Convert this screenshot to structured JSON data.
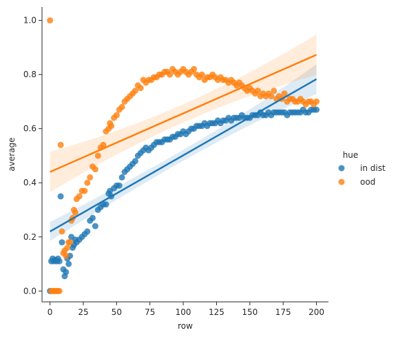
{
  "chart_data": {
    "type": "scatter",
    "title": "",
    "xlabel": "row",
    "ylabel": "average",
    "xlim": [
      -6,
      209
    ],
    "ylim": [
      -0.04,
      1.05
    ],
    "x_ticks": [
      0,
      25,
      50,
      75,
      100,
      125,
      150,
      175,
      200
    ],
    "y_ticks": [
      0.0,
      0.2,
      0.4,
      0.6,
      0.8,
      1.0
    ],
    "x_tick_labels": [
      "0",
      "25",
      "50",
      "75",
      "100",
      "125",
      "150",
      "175",
      "200"
    ],
    "y_tick_labels": [
      "0.0",
      "0.2",
      "0.4",
      "0.6",
      "0.8",
      "1.0"
    ],
    "grid": false,
    "legend": {
      "title": "hue",
      "placement": "right",
      "entries": [
        "in dist",
        "ood"
      ]
    },
    "series": [
      {
        "name": "in dist",
        "color": "#1f77b4",
        "regression": {
          "x0": 0,
          "y0": 0.22,
          "x1": 200,
          "y1": 0.783,
          "ci_start": 0.035,
          "ci_end": 0.055
        },
        "points": [
          [
            0,
            0.0
          ],
          [
            1,
            0.11
          ],
          [
            2,
            0.12
          ],
          [
            3,
            0.11
          ],
          [
            4,
            0.115
          ],
          [
            5,
            0.11
          ],
          [
            6,
            0.12
          ],
          [
            7,
            0.11
          ],
          [
            8,
            0.35
          ],
          [
            9,
            0.18
          ],
          [
            10,
            0.08
          ],
          [
            11,
            0.055
          ],
          [
            12,
            0.07
          ],
          [
            13,
            0.12
          ],
          [
            14,
            0.1
          ],
          [
            15,
            0.13
          ],
          [
            16,
            0.2
          ],
          [
            17,
            0.16
          ],
          [
            18,
            0.17
          ],
          [
            19,
            0.19
          ],
          [
            20,
            0.18
          ],
          [
            22,
            0.19
          ],
          [
            24,
            0.2
          ],
          [
            26,
            0.21
          ],
          [
            28,
            0.22
          ],
          [
            30,
            0.26
          ],
          [
            32,
            0.27
          ],
          [
            34,
            0.24
          ],
          [
            36,
            0.3
          ],
          [
            38,
            0.31
          ],
          [
            40,
            0.32
          ],
          [
            42,
            0.32
          ],
          [
            44,
            0.36
          ],
          [
            45,
            0.37
          ],
          [
            46,
            0.35
          ],
          [
            48,
            0.38
          ],
          [
            50,
            0.39
          ],
          [
            52,
            0.39
          ],
          [
            54,
            0.42
          ],
          [
            56,
            0.44
          ],
          [
            58,
            0.45
          ],
          [
            60,
            0.46
          ],
          [
            62,
            0.47
          ],
          [
            64,
            0.48
          ],
          [
            66,
            0.5
          ],
          [
            68,
            0.51
          ],
          [
            70,
            0.52
          ],
          [
            72,
            0.53
          ],
          [
            74,
            0.52
          ],
          [
            76,
            0.53
          ],
          [
            78,
            0.54
          ],
          [
            80,
            0.55
          ],
          [
            82,
            0.55
          ],
          [
            84,
            0.55
          ],
          [
            86,
            0.56
          ],
          [
            88,
            0.56
          ],
          [
            90,
            0.56
          ],
          [
            92,
            0.57
          ],
          [
            94,
            0.57
          ],
          [
            96,
            0.58
          ],
          [
            98,
            0.58
          ],
          [
            100,
            0.59
          ],
          [
            102,
            0.58
          ],
          [
            104,
            0.59
          ],
          [
            106,
            0.6
          ],
          [
            108,
            0.6
          ],
          [
            110,
            0.61
          ],
          [
            112,
            0.61
          ],
          [
            114,
            0.61
          ],
          [
            116,
            0.62
          ],
          [
            118,
            0.61
          ],
          [
            120,
            0.62
          ],
          [
            122,
            0.62
          ],
          [
            124,
            0.62
          ],
          [
            126,
            0.63
          ],
          [
            128,
            0.62
          ],
          [
            130,
            0.63
          ],
          [
            132,
            0.63
          ],
          [
            134,
            0.64
          ],
          [
            136,
            0.63
          ],
          [
            138,
            0.64
          ],
          [
            140,
            0.64
          ],
          [
            142,
            0.64
          ],
          [
            144,
            0.65
          ],
          [
            146,
            0.64
          ],
          [
            148,
            0.64
          ],
          [
            150,
            0.64
          ],
          [
            152,
            0.65
          ],
          [
            154,
            0.65
          ],
          [
            156,
            0.65
          ],
          [
            158,
            0.66
          ],
          [
            160,
            0.65
          ],
          [
            162,
            0.65
          ],
          [
            164,
            0.66
          ],
          [
            166,
            0.65
          ],
          [
            168,
            0.66
          ],
          [
            170,
            0.66
          ],
          [
            172,
            0.66
          ],
          [
            174,
            0.66
          ],
          [
            176,
            0.66
          ],
          [
            178,
            0.65
          ],
          [
            180,
            0.66
          ],
          [
            182,
            0.66
          ],
          [
            184,
            0.66
          ],
          [
            186,
            0.66
          ],
          [
            188,
            0.66
          ],
          [
            190,
            0.67
          ],
          [
            192,
            0.66
          ],
          [
            194,
            0.66
          ],
          [
            196,
            0.67
          ],
          [
            198,
            0.67
          ],
          [
            200,
            0.67
          ]
        ]
      },
      {
        "name": "ood",
        "color": "#ff7f0e",
        "regression": {
          "x0": 0,
          "y0": 0.44,
          "x1": 200,
          "y1": 0.873,
          "ci_start": 0.075,
          "ci_end": 0.075
        },
        "points": [
          [
            0,
            1.0
          ],
          [
            1,
            0.0
          ],
          [
            2,
            0.0
          ],
          [
            3,
            0.0
          ],
          [
            4,
            0.0
          ],
          [
            5,
            0.0
          ],
          [
            6,
            0.0
          ],
          [
            7,
            0.0
          ],
          [
            8,
            0.54
          ],
          [
            9,
            0.22
          ],
          [
            10,
            0.14
          ],
          [
            11,
            0.15
          ],
          [
            12,
            0.13
          ],
          [
            13,
            0.16
          ],
          [
            14,
            0.18
          ],
          [
            15,
            0.18
          ],
          [
            16,
            0.26
          ],
          [
            17,
            0.27
          ],
          [
            18,
            0.3
          ],
          [
            19,
            0.29
          ],
          [
            20,
            0.34
          ],
          [
            22,
            0.35
          ],
          [
            24,
            0.37
          ],
          [
            26,
            0.37
          ],
          [
            28,
            0.4
          ],
          [
            30,
            0.42
          ],
          [
            32,
            0.46
          ],
          [
            34,
            0.45
          ],
          [
            36,
            0.5
          ],
          [
            38,
            0.53
          ],
          [
            40,
            0.54
          ],
          [
            42,
            0.59
          ],
          [
            44,
            0.6
          ],
          [
            45,
            0.62
          ],
          [
            46,
            0.61
          ],
          [
            48,
            0.64
          ],
          [
            50,
            0.65
          ],
          [
            52,
            0.67
          ],
          [
            54,
            0.68
          ],
          [
            56,
            0.7
          ],
          [
            58,
            0.71
          ],
          [
            60,
            0.72
          ],
          [
            62,
            0.73
          ],
          [
            64,
            0.74
          ],
          [
            66,
            0.76
          ],
          [
            68,
            0.75
          ],
          [
            70,
            0.78
          ],
          [
            72,
            0.77
          ],
          [
            74,
            0.78
          ],
          [
            76,
            0.78
          ],
          [
            78,
            0.79
          ],
          [
            80,
            0.79
          ],
          [
            82,
            0.8
          ],
          [
            84,
            0.8
          ],
          [
            86,
            0.81
          ],
          [
            88,
            0.81
          ],
          [
            90,
            0.8
          ],
          [
            92,
            0.82
          ],
          [
            94,
            0.81
          ],
          [
            96,
            0.8
          ],
          [
            98,
            0.81
          ],
          [
            100,
            0.82
          ],
          [
            102,
            0.81
          ],
          [
            104,
            0.8
          ],
          [
            106,
            0.81
          ],
          [
            108,
            0.82
          ],
          [
            110,
            0.8
          ],
          [
            112,
            0.79
          ],
          [
            114,
            0.8
          ],
          [
            116,
            0.78
          ],
          [
            118,
            0.79
          ],
          [
            120,
            0.79
          ],
          [
            122,
            0.8
          ],
          [
            124,
            0.79
          ],
          [
            126,
            0.78
          ],
          [
            128,
            0.79
          ],
          [
            130,
            0.78
          ],
          [
            132,
            0.78
          ],
          [
            134,
            0.77
          ],
          [
            136,
            0.78
          ],
          [
            138,
            0.77
          ],
          [
            140,
            0.76
          ],
          [
            142,
            0.77
          ],
          [
            144,
            0.76
          ],
          [
            146,
            0.75
          ],
          [
            148,
            0.74
          ],
          [
            150,
            0.75
          ],
          [
            152,
            0.74
          ],
          [
            154,
            0.73
          ],
          [
            156,
            0.74
          ],
          [
            158,
            0.72
          ],
          [
            160,
            0.73
          ],
          [
            162,
            0.72
          ],
          [
            164,
            0.73
          ],
          [
            166,
            0.72
          ],
          [
            168,
            0.74
          ],
          [
            170,
            0.71
          ],
          [
            172,
            0.72
          ],
          [
            174,
            0.71
          ],
          [
            176,
            0.73
          ],
          [
            178,
            0.7
          ],
          [
            180,
            0.71
          ],
          [
            182,
            0.71
          ],
          [
            184,
            0.7
          ],
          [
            186,
            0.7
          ],
          [
            188,
            0.71
          ],
          [
            190,
            0.7
          ],
          [
            192,
            0.69
          ],
          [
            194,
            0.7
          ],
          [
            196,
            0.7
          ],
          [
            198,
            0.69
          ],
          [
            200,
            0.7
          ]
        ]
      }
    ]
  }
}
